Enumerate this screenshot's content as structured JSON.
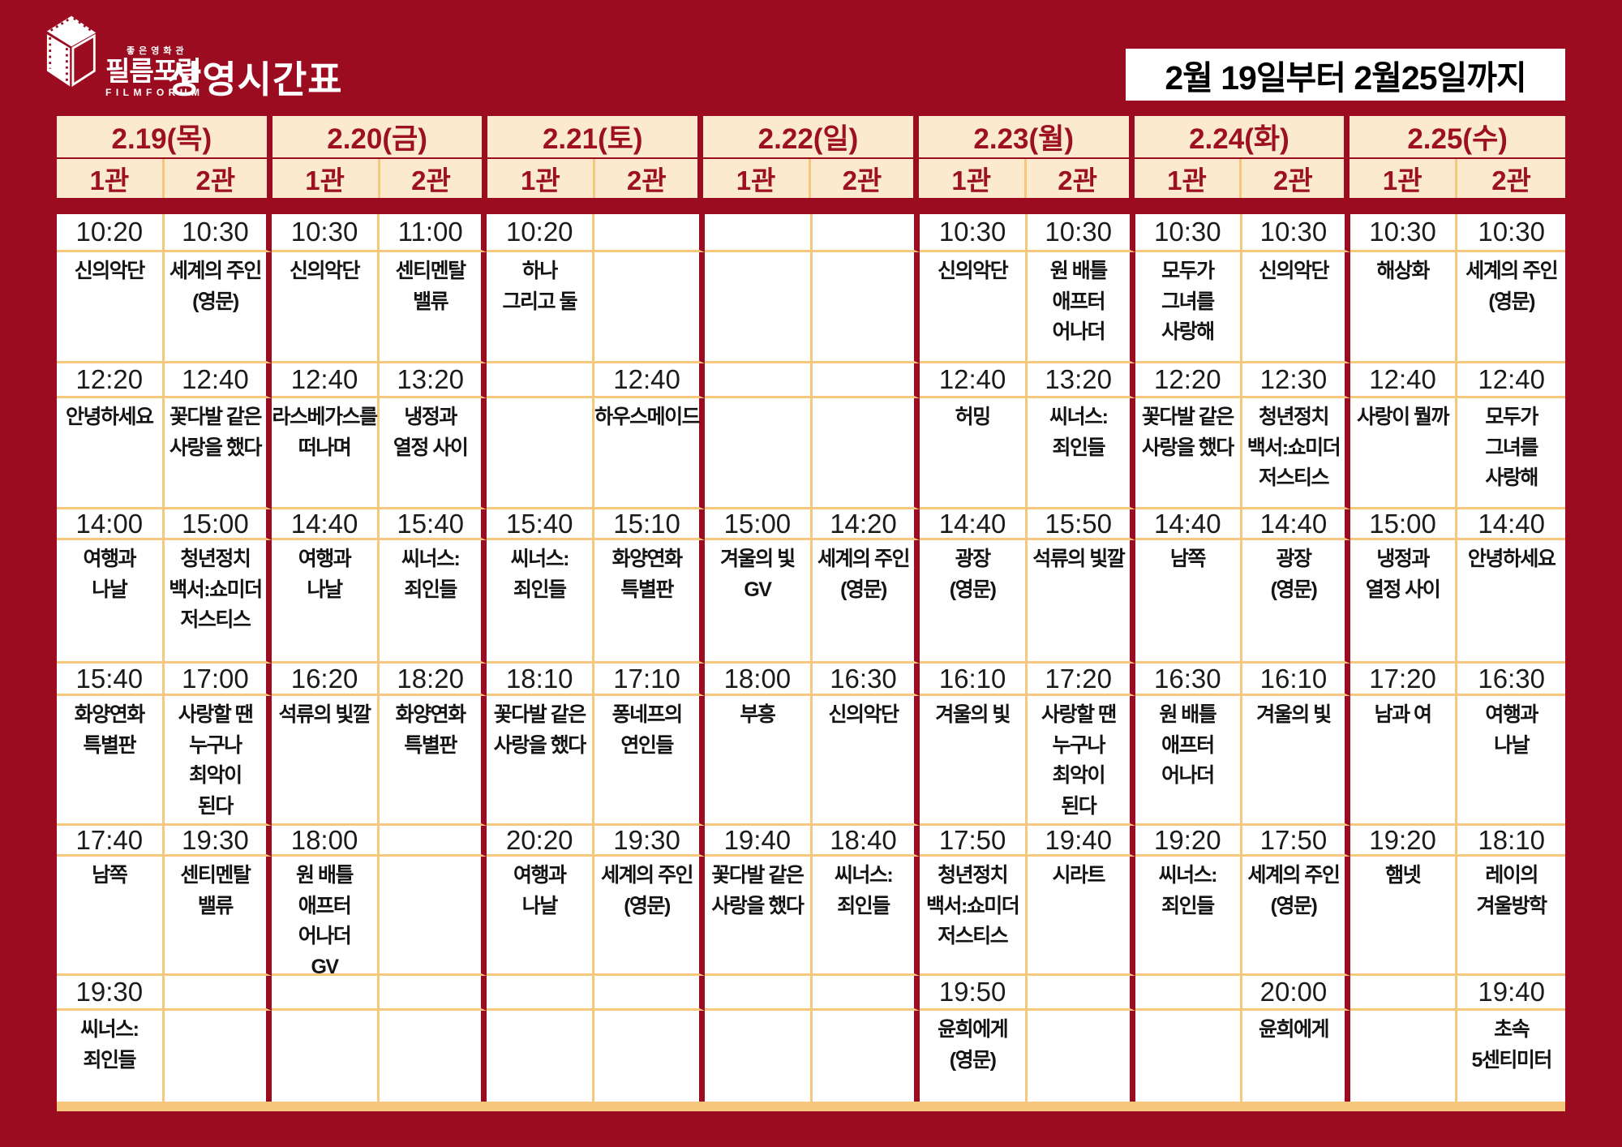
{
  "header": {
    "logo": {
      "tagline": "좋은영화관",
      "name": "필름포럼",
      "latin": "FILMFORUM"
    },
    "title": "상영시간표",
    "date_range": "2월 19일부터 2월25일까지"
  },
  "colors": {
    "background": "#9C0C20",
    "header_bg": "#FBEACD",
    "header_text": "#9C1021",
    "grid_line": "#F6C77D",
    "cell_bg": "#FFFFFF",
    "body_text": "#141414",
    "date_box_bg": "#FFFFFF",
    "date_box_text": "#000000",
    "logo_color": "#FFFFFF"
  },
  "days": [
    {
      "date": "2.19(목)",
      "screens": [
        {
          "name": "1관",
          "shows": [
            {
              "time": "10:20",
              "title": "신의악단"
            },
            {
              "time": "12:20",
              "title": "안녕하세요"
            },
            {
              "time": "14:00",
              "title": "여행과\n나날"
            },
            {
              "time": "15:40",
              "title": "화양연화\n특별판"
            },
            {
              "time": "17:40",
              "title": "남쪽"
            },
            {
              "time": "19:30",
              "title": "씨너스:\n죄인들"
            }
          ]
        },
        {
          "name": "2관",
          "shows": [
            {
              "time": "10:30",
              "title": "세계의 주인\n(영문)"
            },
            {
              "time": "12:40",
              "title": "꽃다발 같은\n사랑을 했다"
            },
            {
              "time": "15:00",
              "title": "청년정치\n백서:쇼미더\n저스티스"
            },
            {
              "time": "17:00",
              "title": "사랑할 땐\n누구나\n최악이\n된다"
            },
            {
              "time": "19:30",
              "title": "센티멘탈\n밸류"
            },
            {
              "time": "",
              "title": ""
            }
          ]
        }
      ]
    },
    {
      "date": "2.20(금)",
      "screens": [
        {
          "name": "1관",
          "shows": [
            {
              "time": "10:30",
              "title": "신의악단"
            },
            {
              "time": "12:40",
              "title": "라스베가스를\n떠나며"
            },
            {
              "time": "14:40",
              "title": "여행과\n나날"
            },
            {
              "time": "16:20",
              "title": "석류의 빛깔"
            },
            {
              "time": "18:00",
              "title": "원 배틀\n애프터\n어나더\nGV"
            },
            {
              "time": "",
              "title": ""
            }
          ]
        },
        {
          "name": "2관",
          "shows": [
            {
              "time": "11:00",
              "title": "센티멘탈\n밸류"
            },
            {
              "time": "13:20",
              "title": "냉정과\n열정 사이"
            },
            {
              "time": "15:40",
              "title": "씨너스:\n죄인들"
            },
            {
              "time": "18:20",
              "title": "화양연화\n특별판"
            },
            {
              "time": "",
              "title": ""
            },
            {
              "time": "",
              "title": ""
            }
          ]
        }
      ]
    },
    {
      "date": "2.21(토)",
      "screens": [
        {
          "name": "1관",
          "shows": [
            {
              "time": "10:20",
              "title": "하나\n그리고 둘"
            },
            {
              "time": "",
              "title": ""
            },
            {
              "time": "15:40",
              "title": "씨너스:\n죄인들"
            },
            {
              "time": "18:10",
              "title": "꽃다발 같은\n사랑을 했다"
            },
            {
              "time": "20:20",
              "title": "여행과\n나날"
            },
            {
              "time": "",
              "title": ""
            }
          ]
        },
        {
          "name": "2관",
          "shows": [
            {
              "time": "",
              "title": ""
            },
            {
              "time": "12:40",
              "title": "하우스메이드"
            },
            {
              "time": "15:10",
              "title": "화양연화\n특별판"
            },
            {
              "time": "17:10",
              "title": "퐁네프의\n연인들"
            },
            {
              "time": "19:30",
              "title": "세계의 주인\n(영문)"
            },
            {
              "time": "",
              "title": ""
            }
          ]
        }
      ]
    },
    {
      "date": "2.22(일)",
      "screens": [
        {
          "name": "1관",
          "shows": [
            {
              "time": "",
              "title": ""
            },
            {
              "time": "",
              "title": ""
            },
            {
              "time": "15:00",
              "title": "겨울의 빛\nGV"
            },
            {
              "time": "18:00",
              "title": "부흥"
            },
            {
              "time": "19:40",
              "title": "꽃다발 같은\n사랑을 했다"
            },
            {
              "time": "",
              "title": ""
            }
          ]
        },
        {
          "name": "2관",
          "shows": [
            {
              "time": "",
              "title": ""
            },
            {
              "time": "",
              "title": ""
            },
            {
              "time": "14:20",
              "title": "세계의 주인\n(영문)"
            },
            {
              "time": "16:30",
              "title": "신의악단"
            },
            {
              "time": "18:40",
              "title": "씨너스:\n죄인들"
            },
            {
              "time": "",
              "title": ""
            }
          ]
        }
      ]
    },
    {
      "date": "2.23(월)",
      "screens": [
        {
          "name": "1관",
          "shows": [
            {
              "time": "10:30",
              "title": "신의악단"
            },
            {
              "time": "12:40",
              "title": "허밍"
            },
            {
              "time": "14:40",
              "title": "광장\n(영문)"
            },
            {
              "time": "16:10",
              "title": "겨울의 빛"
            },
            {
              "time": "17:50",
              "title": "청년정치\n백서:쇼미더\n저스티스"
            },
            {
              "time": "19:50",
              "title": "윤희에게\n(영문)"
            }
          ]
        },
        {
          "name": "2관",
          "shows": [
            {
              "time": "10:30",
              "title": "원 배틀\n애프터\n어나더"
            },
            {
              "time": "13:20",
              "title": "씨너스:\n죄인들"
            },
            {
              "time": "15:50",
              "title": "석류의 빛깔"
            },
            {
              "time": "17:20",
              "title": "사랑할 땐\n누구나\n최악이\n된다"
            },
            {
              "time": "19:40",
              "title": "시라트"
            },
            {
              "time": "",
              "title": ""
            }
          ]
        }
      ]
    },
    {
      "date": "2.24(화)",
      "screens": [
        {
          "name": "1관",
          "shows": [
            {
              "time": "10:30",
              "title": "모두가\n그녀를\n사랑해"
            },
            {
              "time": "12:20",
              "title": "꽃다발 같은\n사랑을 했다"
            },
            {
              "time": "14:40",
              "title": "남쪽"
            },
            {
              "time": "16:30",
              "title": "원 배틀\n애프터\n어나더"
            },
            {
              "time": "19:20",
              "title": "씨너스:\n죄인들"
            },
            {
              "time": "",
              "title": ""
            }
          ]
        },
        {
          "name": "2관",
          "shows": [
            {
              "time": "10:30",
              "title": "신의악단"
            },
            {
              "time": "12:30",
              "title": "청년정치\n백서:쇼미더\n저스티스"
            },
            {
              "time": "14:40",
              "title": "광장\n(영문)"
            },
            {
              "time": "16:10",
              "title": "겨울의 빛"
            },
            {
              "time": "17:50",
              "title": "세계의 주인\n(영문)"
            },
            {
              "time": "20:00",
              "title": "윤희에게"
            }
          ]
        }
      ]
    },
    {
      "date": "2.25(수)",
      "screens": [
        {
          "name": "1관",
          "shows": [
            {
              "time": "10:30",
              "title": "해상화"
            },
            {
              "time": "12:40",
              "title": "사랑이 뭘까"
            },
            {
              "time": "15:00",
              "title": "냉정과\n열정 사이"
            },
            {
              "time": "17:20",
              "title": "남과 여"
            },
            {
              "time": "19:20",
              "title": "햄넷"
            },
            {
              "time": "",
              "title": ""
            }
          ]
        },
        {
          "name": "2관",
          "shows": [
            {
              "time": "10:30",
              "title": "세계의 주인\n(영문)"
            },
            {
              "time": "12:40",
              "title": "모두가\n그녀를\n사랑해"
            },
            {
              "time": "14:40",
              "title": "안녕하세요"
            },
            {
              "time": "16:30",
              "title": "여행과\n나날"
            },
            {
              "time": "18:10",
              "title": "레이의\n겨울방학"
            },
            {
              "time": "19:40",
              "title": "초속\n5센티미터"
            }
          ]
        }
      ]
    }
  ]
}
